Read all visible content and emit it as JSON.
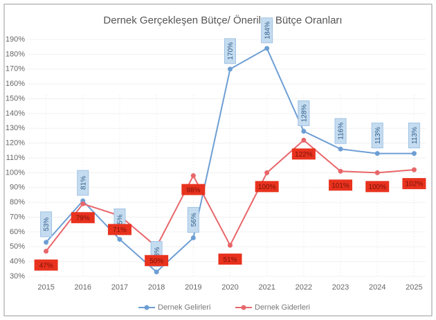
{
  "chart_data": {
    "type": "line",
    "title": "Dernek Gerçekleşen Bütçe/ Önerilen Bütçe Oranları",
    "categories": [
      "2015",
      "2016",
      "2017",
      "2018",
      "2019",
      "2020",
      "2021",
      "2022",
      "2023",
      "2024",
      "2025"
    ],
    "series": [
      {
        "name": "Dernek Gelirleri",
        "color": "#6d9ed4",
        "values": [
          53,
          81,
          55,
          33,
          56,
          170,
          184,
          128,
          116,
          113,
          113
        ],
        "value_labels": [
          "53%",
          "81%",
          "55%",
          "33%",
          "56%",
          "170%",
          "184%",
          "128%",
          "116%",
          "113%",
          "113%"
        ]
      },
      {
        "name": "Dernek Giderleri",
        "color": "#e8666a",
        "values": [
          47,
          79,
          71,
          50,
          98,
          51,
          100,
          122,
          101,
          100,
          102
        ],
        "value_labels": [
          "47%",
          "79%",
          "71%",
          "50%",
          "98%",
          "51%",
          "100%",
          "122%",
          "101%",
          "100%",
          "102%"
        ]
      }
    ],
    "ylim": [
      30,
      190
    ],
    "yticks": [
      {
        "value": 30,
        "label": "30%"
      },
      {
        "value": 40,
        "label": "40%"
      },
      {
        "value": 50,
        "label": "50%"
      },
      {
        "value": 60,
        "label": "60%"
      },
      {
        "value": 70,
        "label": "70%"
      },
      {
        "value": 80,
        "label": "80%"
      },
      {
        "value": 90,
        "label": "90%"
      },
      {
        "value": 100,
        "label": "100%"
      },
      {
        "value": 110,
        "label": "110%"
      },
      {
        "value": 120,
        "label": "120%"
      },
      {
        "value": 130,
        "label": "130%"
      },
      {
        "value": 140,
        "label": "140%"
      },
      {
        "value": 150,
        "label": "150%"
      },
      {
        "value": 160,
        "label": "160%"
      },
      {
        "value": 170,
        "label": "170%"
      },
      {
        "value": 180,
        "label": "180%"
      },
      {
        "value": 190,
        "label": "190%"
      }
    ],
    "grid": true,
    "legend": "bottom"
  }
}
